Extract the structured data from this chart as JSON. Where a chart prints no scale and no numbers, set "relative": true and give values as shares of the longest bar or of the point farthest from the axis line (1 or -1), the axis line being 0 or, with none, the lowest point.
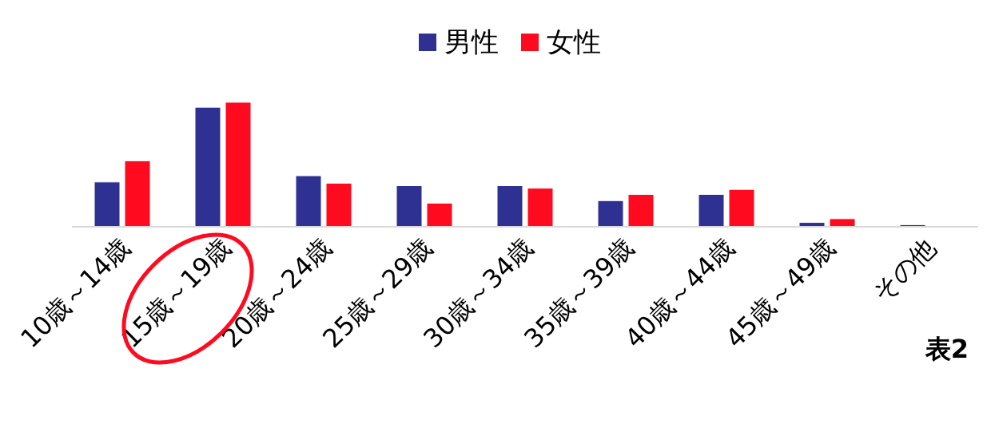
{
  "chart_data": {
    "type": "bar",
    "relative": true,
    "legend": "top",
    "categories": [
      "10歳～14歳",
      "15歳～19歳",
      "20歳～24歳",
      "25歳～29歳",
      "30歳～34歳",
      "35歳～39歳",
      "40歳～44歳",
      "45歳～49歳",
      "その他"
    ],
    "series": [
      {
        "name": "男性",
        "color": "#2e3192",
        "values": [
          0.36,
          0.96,
          0.41,
          0.33,
          0.33,
          0.21,
          0.26,
          0.035,
          0.017
        ]
      },
      {
        "name": "女性",
        "color": "#ff0a1e",
        "values": [
          0.53,
          1,
          0.35,
          0.19,
          0.31,
          0.26,
          0.3,
          0.065,
          0
        ]
      }
    ],
    "annotations": [
      "表2"
    ]
  }
}
